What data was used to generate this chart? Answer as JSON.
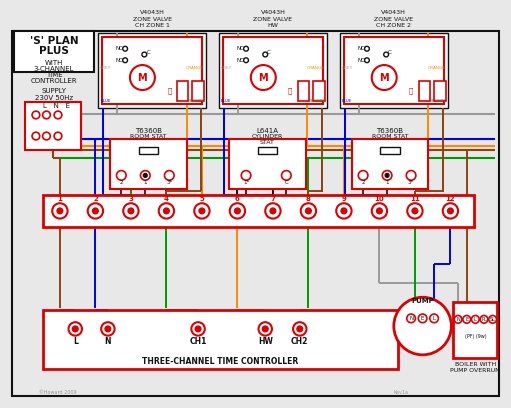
{
  "bg": "#e8e8e8",
  "cc": "#dd0000",
  "blue": "#0000ee",
  "green": "#009900",
  "orange": "#ff8800",
  "brown": "#8B4513",
  "gray": "#999999",
  "black": "#111111",
  "white": "#ffffff",
  "zv_labels": [
    "V4043H\nZONE VALVE\nCH ZONE 1",
    "V4043H\nZONE VALVE\nHW",
    "V4043H\nZONE VALVE\nCH ZONE 2"
  ],
  "stat_labels_top": [
    "T6360B",
    "L641A",
    "T6360B"
  ],
  "stat_labels_bot": [
    "ROOM STAT",
    "CYLINDER\nSTAT",
    "ROOM STAT"
  ],
  "term_nums": [
    "1",
    "2",
    "3",
    "4",
    "5",
    "6",
    "7",
    "8",
    "9",
    "10",
    "11",
    "12"
  ],
  "ctrl_labels": [
    "L",
    "N",
    "CH1",
    "HW",
    "CH2"
  ],
  "pump_label": "PUMP",
  "boiler_label": "BOILER WITH\nPUMP OVERRUN",
  "boiler_terms": [
    "N",
    "E",
    "L",
    "PL",
    "SL"
  ],
  "boiler_sub": "(PF) (9w)",
  "pump_terms": [
    "N",
    "E",
    "L"
  ],
  "footer_left": "©Howard 2009",
  "footer_right": "Kev1a",
  "ctrl_footer": "THREE-CHANNEL TIME CONTROLLER"
}
